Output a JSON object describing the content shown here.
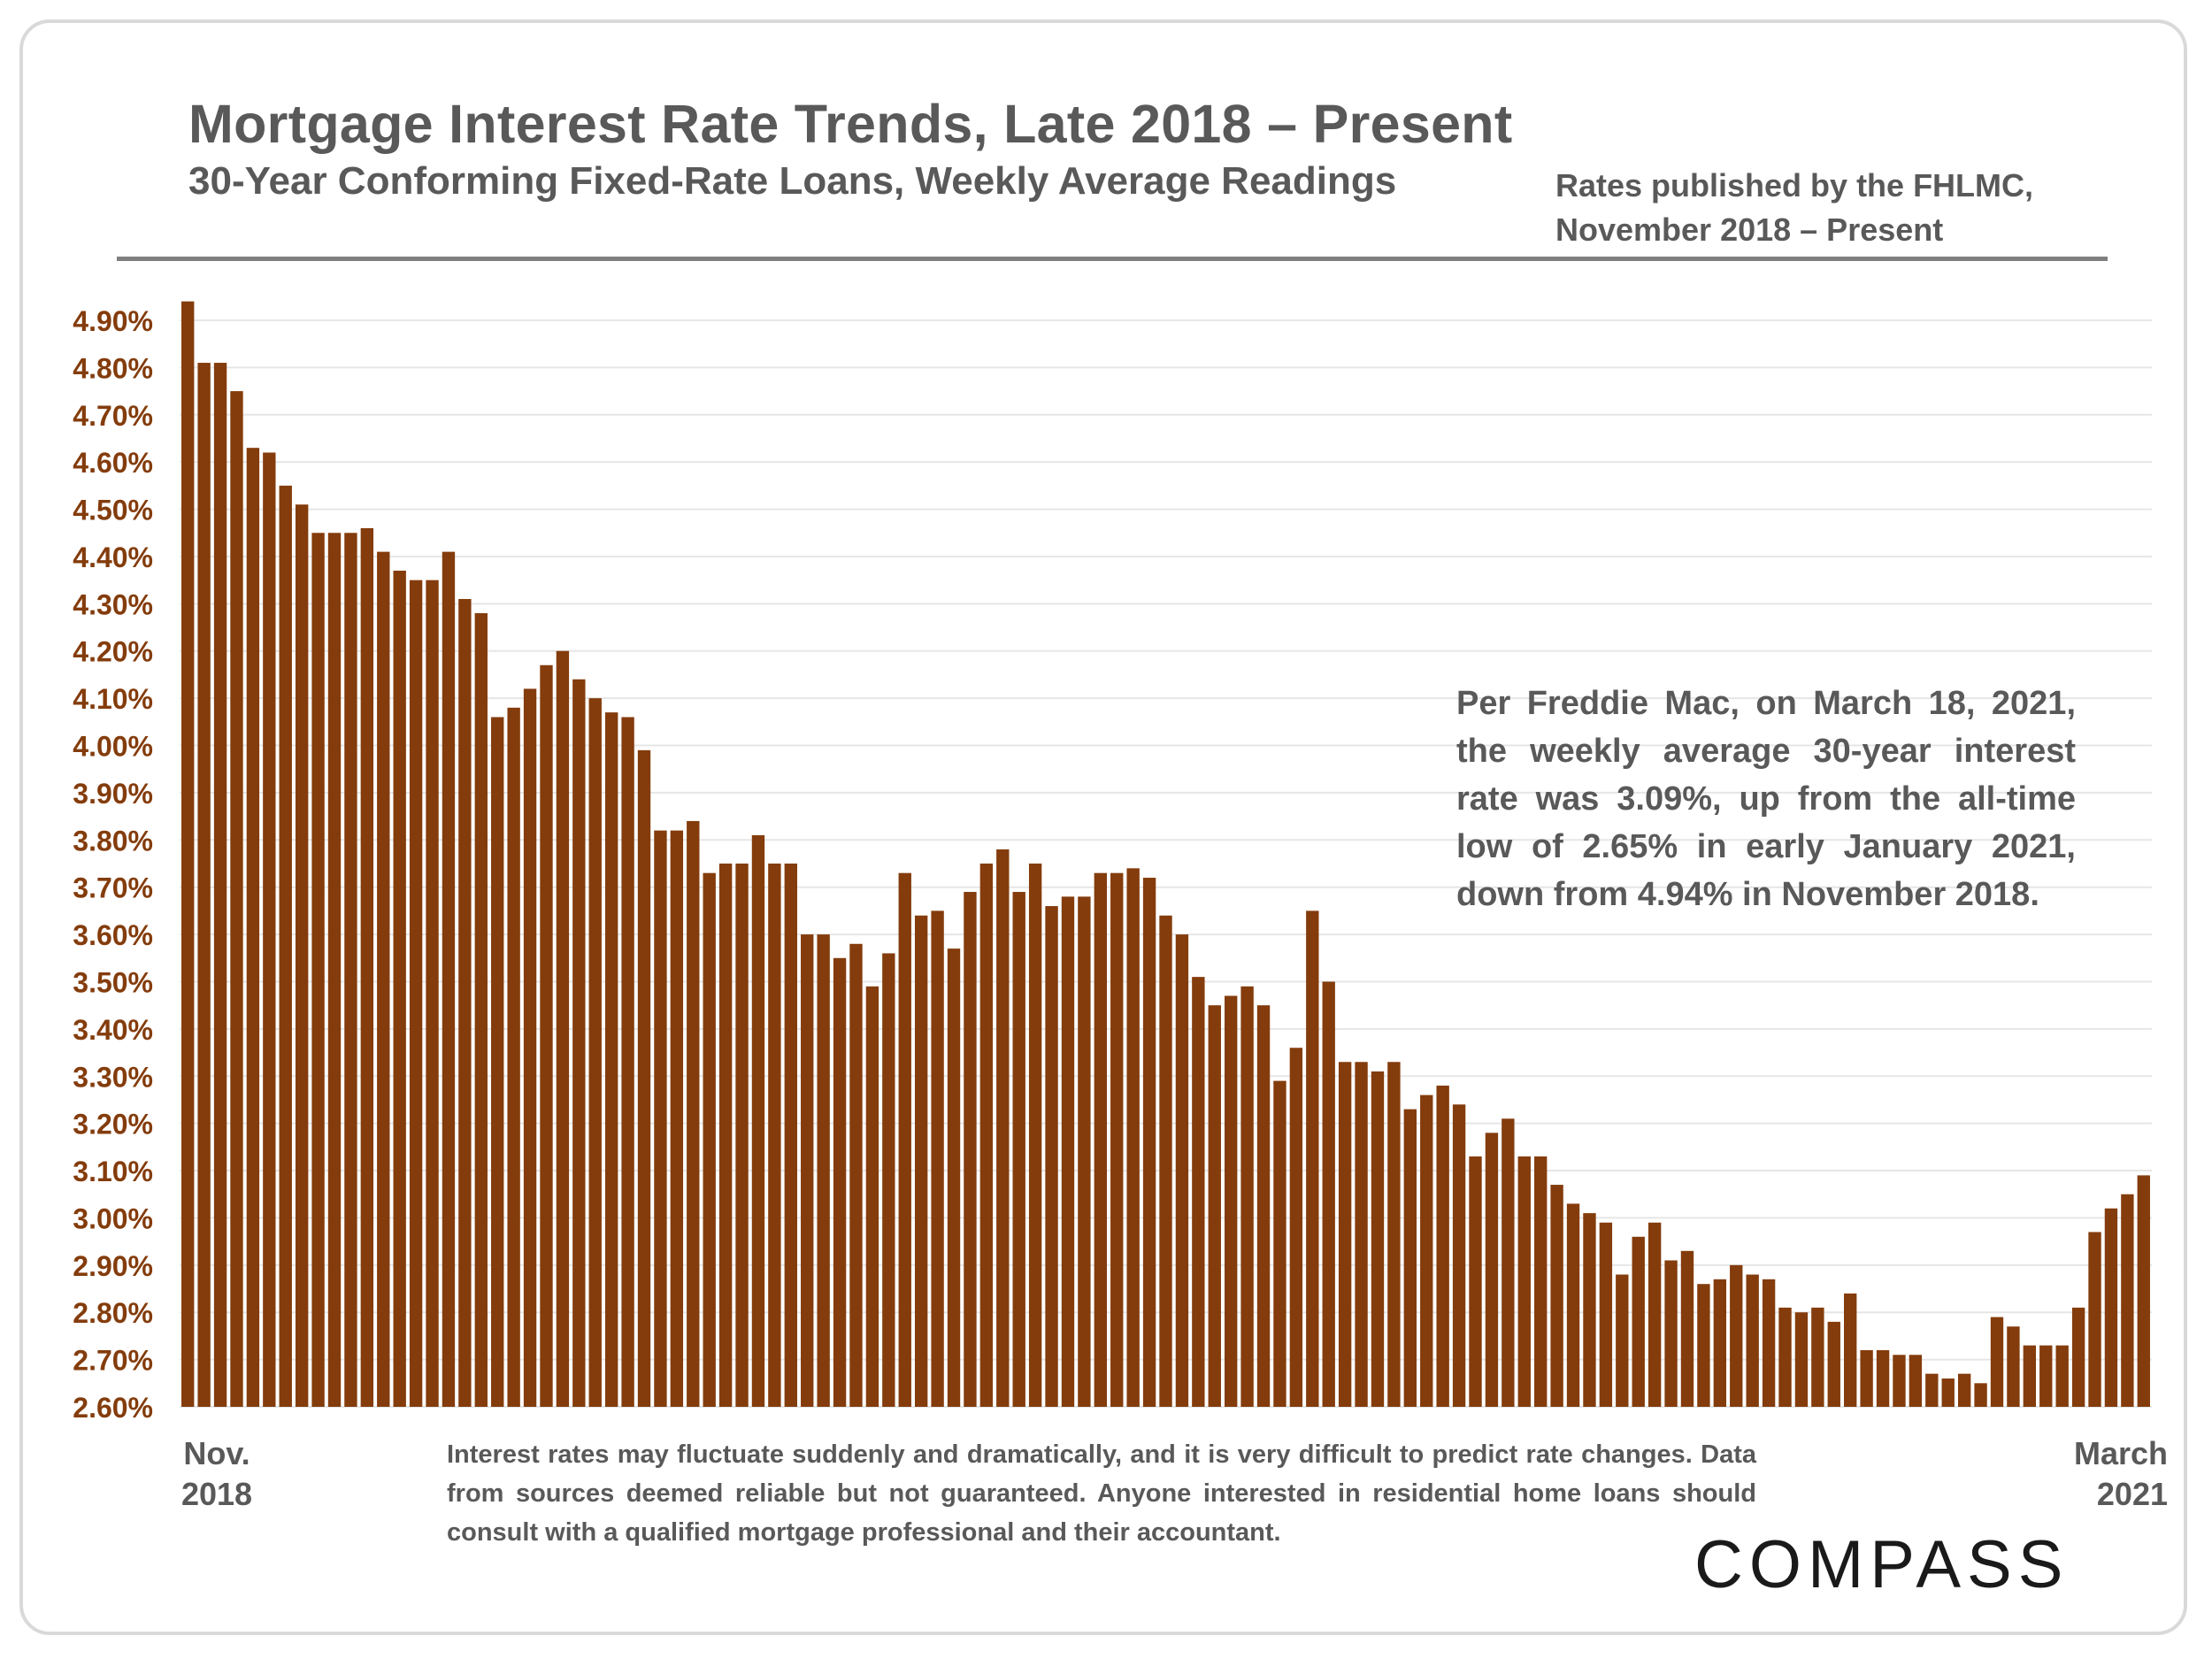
{
  "header": {
    "title": "Mortgage Interest Rate Trends, Late 2018 – Present",
    "subtitle": "30-Year Conforming Fixed-Rate Loans, Weekly Average Readings",
    "source_line1": "Rates published by the FHLMC,",
    "source_line2": "November 2018 – Present"
  },
  "annotation": "Per Freddie Mac, on March 18, 2021, the weekly average 30-year interest rate was 3.09%, up from the all-time low of 2.65% in early January 2021, down from 4.94% in November 2018.",
  "x_axis": {
    "start_line1": "Nov.",
    "start_line2": "2018",
    "end_line1": "March",
    "end_line2": "2021"
  },
  "disclaimer": "Interest rates may fluctuate suddenly and dramatically, and it is very difficult to predict rate changes. Data from sources deemed reliable but not guaranteed. Anyone interested in residential home loans should consult with a qualified mortgage professional and their accountant.",
  "logo": "COMPASS",
  "colors": {
    "bar": "#843c0c",
    "tick_label": "#843c0c",
    "grid": "#e6e6e6",
    "text": "#595959"
  },
  "chart_data": {
    "type": "bar",
    "title": "Mortgage Interest Rate Trends, Late 2018 – Present",
    "ylim": [
      2.6,
      4.95
    ],
    "yticks": [
      "4.90%",
      "4.80%",
      "4.70%",
      "4.60%",
      "4.50%",
      "4.40%",
      "4.30%",
      "4.20%",
      "4.10%",
      "4.00%",
      "3.90%",
      "3.80%",
      "3.70%",
      "3.60%",
      "3.50%",
      "3.40%",
      "3.30%",
      "3.20%",
      "3.10%",
      "3.00%",
      "2.90%",
      "2.80%",
      "2.70%",
      "2.60%"
    ],
    "ytick_values": [
      4.9,
      4.8,
      4.7,
      4.6,
      4.5,
      4.4,
      4.3,
      4.2,
      4.1,
      4.0,
      3.9,
      3.8,
      3.7,
      3.6,
      3.5,
      3.4,
      3.3,
      3.2,
      3.1,
      3.0,
      2.9,
      2.8,
      2.7,
      2.6
    ],
    "grid": true,
    "values": [
      4.94,
      4.81,
      4.81,
      4.75,
      4.63,
      4.62,
      4.55,
      4.51,
      4.45,
      4.45,
      4.45,
      4.46,
      4.41,
      4.37,
      4.35,
      4.35,
      4.41,
      4.31,
      4.28,
      4.06,
      4.08,
      4.12,
      4.17,
      4.2,
      4.14,
      4.1,
      4.07,
      4.06,
      3.99,
      3.82,
      3.82,
      3.84,
      3.73,
      3.75,
      3.75,
      3.81,
      3.75,
      3.75,
      3.6,
      3.6,
      3.55,
      3.58,
      3.49,
      3.56,
      3.73,
      3.64,
      3.65,
      3.57,
      3.69,
      3.75,
      3.78,
      3.69,
      3.75,
      3.66,
      3.68,
      3.68,
      3.73,
      3.73,
      3.74,
      3.72,
      3.64,
      3.6,
      3.51,
      3.45,
      3.47,
      3.49,
      3.45,
      3.29,
      3.36,
      3.65,
      3.5,
      3.33,
      3.33,
      3.31,
      3.33,
      3.23,
      3.26,
      3.28,
      3.24,
      3.13,
      3.18,
      3.21,
      3.13,
      3.13,
      3.07,
      3.03,
      3.01,
      2.99,
      2.88,
      2.96,
      2.99,
      2.91,
      2.93,
      2.86,
      2.87,
      2.9,
      2.88,
      2.87,
      2.81,
      2.8,
      2.81,
      2.78,
      2.84,
      2.72,
      2.72,
      2.71,
      2.71,
      2.67,
      2.66,
      2.67,
      2.65,
      2.79,
      2.77,
      2.73,
      2.73,
      2.73,
      2.81,
      2.97,
      3.02,
      3.05,
      3.09
    ]
  }
}
